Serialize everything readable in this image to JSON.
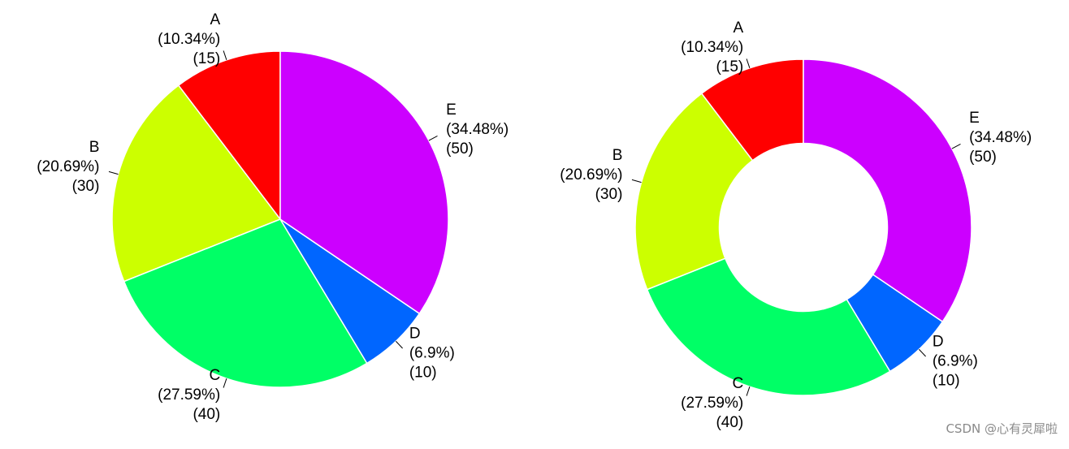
{
  "chart_data": [
    {
      "type": "pie",
      "categories": [
        "A",
        "B",
        "C",
        "D",
        "E"
      ],
      "values": [
        15,
        30,
        40,
        10,
        50
      ],
      "percent_labels": [
        "(10.34%)",
        "(20.69%)",
        "(27.59%)",
        "(6.9%)",
        "(34.48%)"
      ],
      "value_labels": [
        "(15)",
        "(30)",
        "(40)",
        "(10)",
        "(50)"
      ],
      "colors": [
        "#ff0000",
        "#ccff00",
        "#00ff66",
        "#0066ff",
        "#cc00ff"
      ]
    },
    {
      "type": "donut",
      "categories": [
        "A",
        "B",
        "C",
        "D",
        "E"
      ],
      "values": [
        15,
        30,
        40,
        10,
        50
      ],
      "percent_labels": [
        "(10.34%)",
        "(20.69%)",
        "(27.59%)",
        "(6.9%)",
        "(34.48%)"
      ],
      "value_labels": [
        "(15)",
        "(30)",
        "(40)",
        "(10)",
        "(50)"
      ],
      "colors": [
        "#ff0000",
        "#ccff00",
        "#00ff66",
        "#0066ff",
        "#cc00ff"
      ],
      "inner_radius_ratio": 0.5
    }
  ],
  "watermark": "CSDN @心有灵犀啦"
}
